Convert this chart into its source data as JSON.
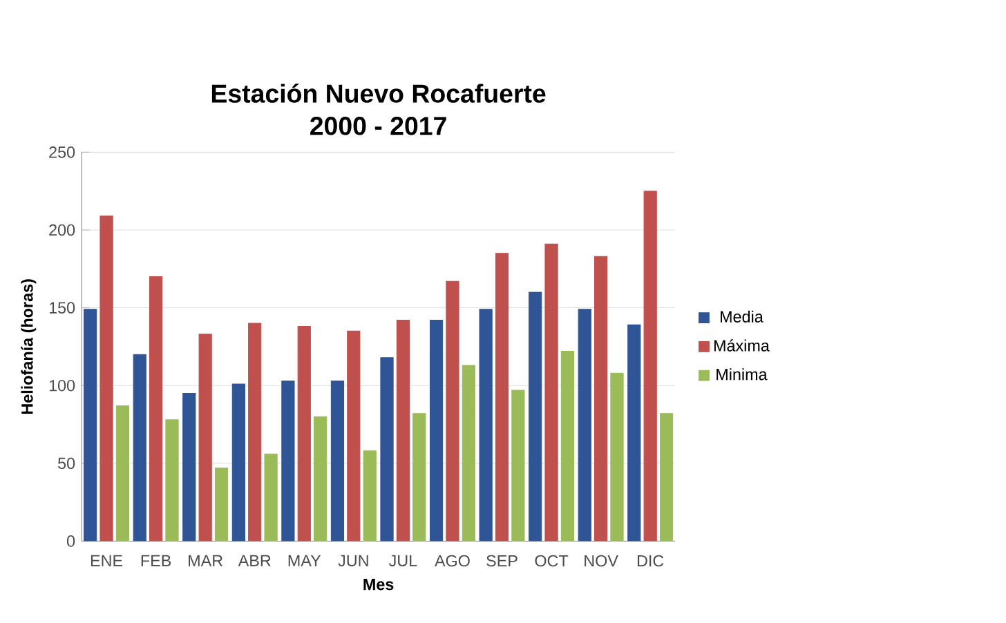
{
  "chart_data": {
    "type": "bar",
    "title": "Estación Nuevo Rocafuerte",
    "subtitle": "2000 - 2017",
    "xlabel": "Mes",
    "ylabel": "Heliofanía (horas)",
    "categories": [
      "ENE",
      "FEB",
      "MAR",
      "ABR",
      "MAY",
      "JUN",
      "JUL",
      "AGO",
      "SEP",
      "OCT",
      "NOV",
      "DIC"
    ],
    "series": [
      {
        "name": "Media",
        "color": "#2f5597",
        "values": [
          149,
          120,
          95,
          101,
          103,
          103,
          118,
          142,
          149,
          160,
          149,
          139
        ]
      },
      {
        "name": "Máxima",
        "color": "#c0504d",
        "values": [
          209,
          170,
          133,
          140,
          138,
          135,
          142,
          167,
          185,
          191,
          183,
          225
        ]
      },
      {
        "name": "Minima",
        "color": "#9bbb59",
        "values": [
          87,
          78,
          47,
          56,
          80,
          58,
          82,
          113,
          97,
          122,
          108,
          82
        ]
      }
    ],
    "ylim": [
      0,
      250
    ],
    "yticks": [
      0,
      50,
      100,
      150,
      200,
      250
    ],
    "grid": "y",
    "legend": "right"
  }
}
